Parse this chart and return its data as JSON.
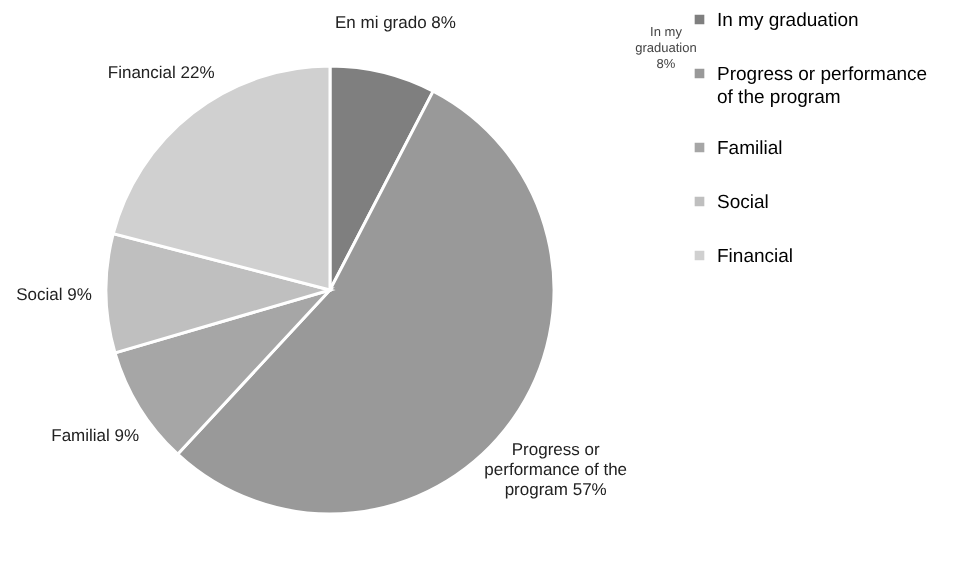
{
  "chart_data": {
    "type": "pie",
    "categories": [
      "In my graduation",
      "Progress or performance of the program",
      "Familial",
      "Social",
      "Financial"
    ],
    "values": [
      8,
      57,
      9,
      9,
      22
    ],
    "colors": [
      "#7f7f7f",
      "#999999",
      "#a6a6a6",
      "#bfbfbf",
      "#d0d0d0"
    ],
    "value_labels": [
      "En mi grado 8%",
      "Progress or performance of the program 57%",
      "Familial 9%",
      "Social 9%",
      "Financial 22%"
    ],
    "annotations": [
      "In my graduation 8%"
    ],
    "legend": "right"
  }
}
